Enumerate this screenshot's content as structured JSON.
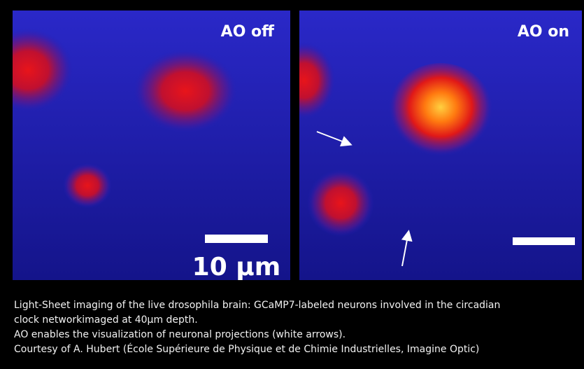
{
  "panels": [
    {
      "label": "AO off",
      "scale_label": "10 µm"
    },
    {
      "label": "AO on"
    }
  ],
  "caption": [
    "Light-Sheet imaging of the live drosophila brain: GCaMP7-labeled neurons involved in the circadian",
    "clock networkimaged at 40µm depth.",
    "AO enables the visualization of neuronal projections (white arrows).",
    "Courtesy of A. Hubert (École Supérieure de Physique et de Chimie Industrielles, Imagine Optic)"
  ]
}
